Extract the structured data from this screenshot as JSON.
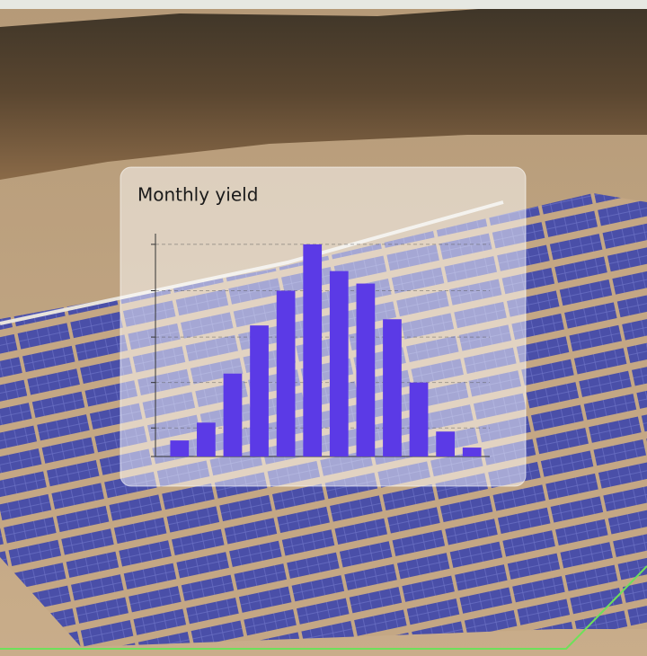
{
  "chart_data": {
    "type": "bar",
    "title": "Monthly yield",
    "categories": [
      null,
      null,
      null,
      null,
      null,
      null,
      null,
      null,
      null,
      null,
      null,
      null
    ],
    "values": [
      18,
      38,
      93,
      147,
      186,
      238,
      208,
      194,
      154,
      83,
      28,
      10
    ],
    "color": "#5b3ae6",
    "ylim": [
      0,
      250
    ],
    "yticks": [
      0,
      32,
      83,
      134,
      186,
      238
    ],
    "grid": true
  }
}
